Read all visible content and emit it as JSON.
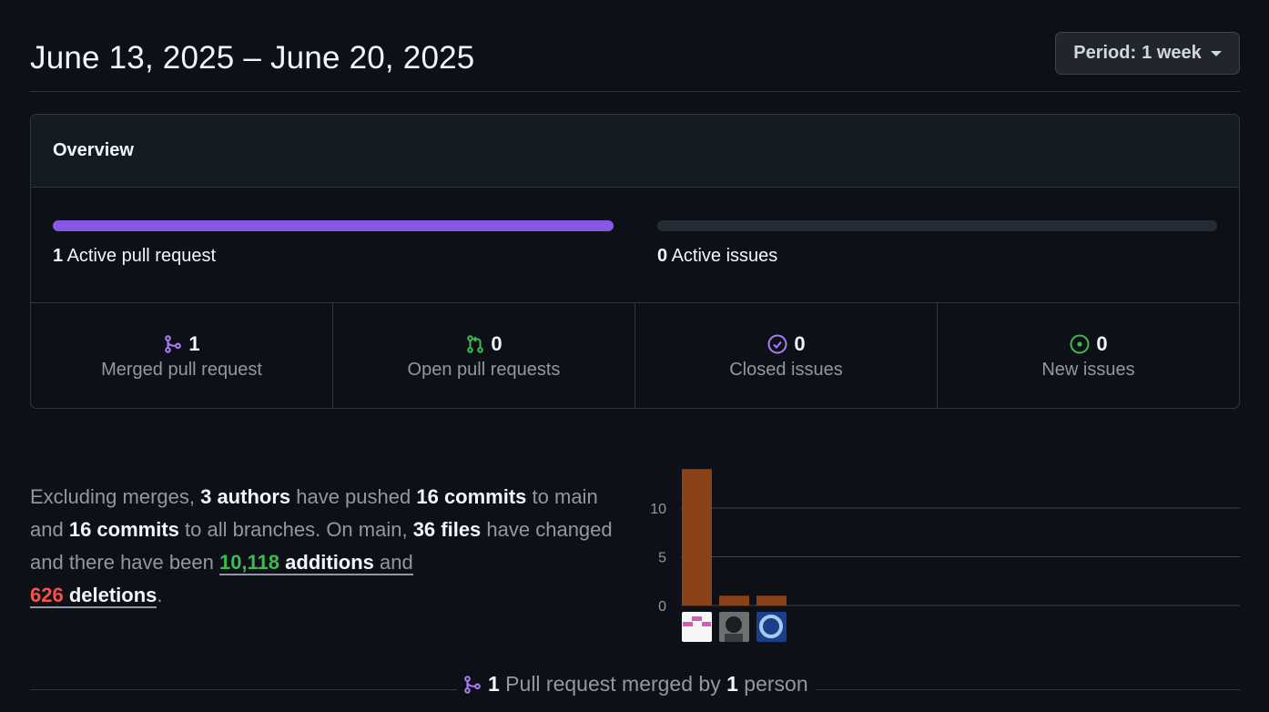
{
  "header": {
    "date_range": "June 13, 2025 – June 20, 2025",
    "period_label": "Period:",
    "period_value": "1 week"
  },
  "overview": {
    "title": "Overview",
    "pull_requests": {
      "count": "1",
      "label": "Active pull request",
      "fill_fraction": 1.0,
      "color": "#8957e5"
    },
    "issues": {
      "count": "0",
      "label": "Active issues",
      "fill_fraction": 0.0
    },
    "stats": [
      {
        "value": "1",
        "label": "Merged pull request",
        "icon": "git-merge-icon",
        "color": "#ab7df8"
      },
      {
        "value": "0",
        "label": "Open pull requests",
        "icon": "git-pull-request-icon",
        "color": "#3fb950"
      },
      {
        "value": "0",
        "label": "Closed issues",
        "icon": "issue-closed-icon",
        "color": "#ab7df8"
      },
      {
        "value": "0",
        "label": "New issues",
        "icon": "issue-opened-icon",
        "color": "#3fb950"
      }
    ]
  },
  "summary": {
    "t1": "Excluding merges, ",
    "authors": "3 authors",
    "t2": " have pushed ",
    "commits_main": "16 commits",
    "t3": " to main and ",
    "commits_all": "16 commits",
    "t4": " to all branches. On main, ",
    "files": "36 files",
    "t5": " have changed and there have been ",
    "additions_num": "10,118",
    "additions_word": " additions",
    "t6": " and",
    "deletions_num": "626",
    "deletions_word": " deletions",
    "t7": "."
  },
  "chart_data": {
    "type": "bar",
    "categories": [
      "author-1",
      "author-2",
      "author-3"
    ],
    "values": [
      14,
      1,
      1
    ],
    "yticks": [
      "0",
      "5",
      "10"
    ],
    "ylim": [
      0,
      15
    ],
    "bar_color": "#8b4219",
    "grid": true
  },
  "footer": {
    "count": "1",
    "t1": " Pull request merged by ",
    "people": "1",
    "t2": " person"
  }
}
